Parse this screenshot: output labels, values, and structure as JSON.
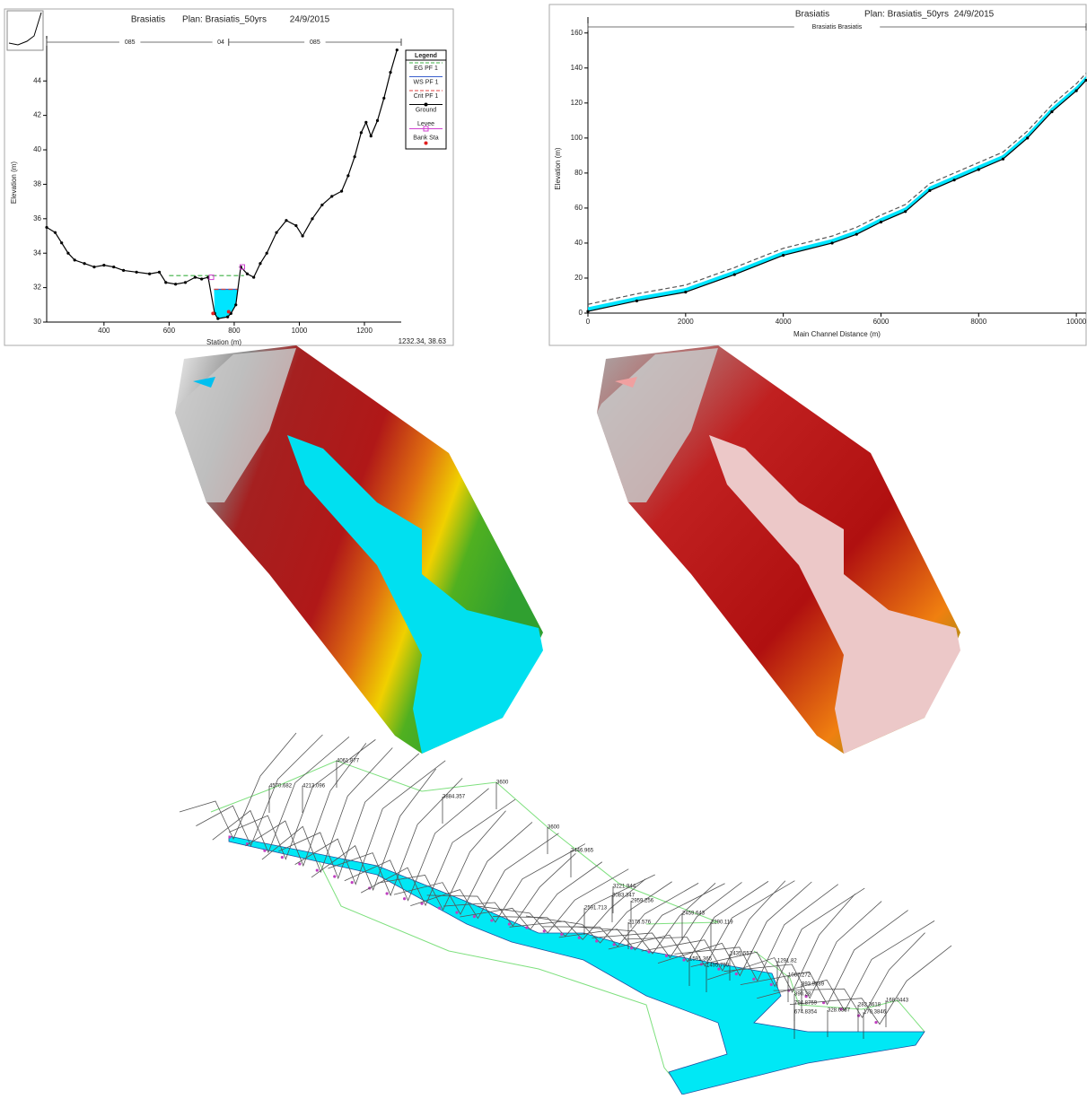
{
  "chart_data": [
    {
      "type": "line",
      "title": "Brasiatis",
      "plan": "Plan: Brasiatis_50yrs",
      "date": "24/9/2015",
      "x_label": "Station (m)",
      "y_label": "Elevation (m)",
      "xlim": [
        224,
        1313
      ],
      "xticks": [
        400,
        600,
        800,
        1000,
        1200
      ],
      "ylim": [
        30,
        46.2
      ],
      "yticks": [
        30,
        32,
        34,
        36,
        38,
        40,
        42,
        44
      ],
      "reach_labels": [
        "085",
        "04",
        "085"
      ],
      "legend": true,
      "legend_title": "Legend",
      "cursor_readout": "1232.34, 38.63",
      "series": [
        {
          "name": "EG PF 1",
          "color": "#3cb043",
          "dash": true,
          "line": true,
          "marker": null,
          "x": [
            600,
            830
          ],
          "values": [
            32.7,
            32.7
          ]
        },
        {
          "name": "WS PF 1",
          "color": "#3a5fcd",
          "dash": false,
          "line": true,
          "marker": null,
          "x": [
            738,
            812
          ],
          "values": [
            31.9,
            31.9
          ]
        },
        {
          "name": "Crit PF 1",
          "color": "#e04040",
          "dash": true,
          "line": true,
          "marker": null,
          "x": [
            738,
            812
          ],
          "values": [
            31.9,
            31.9
          ]
        },
        {
          "name": "Ground",
          "color": "#000000",
          "dash": false,
          "line": true,
          "marker": "circle",
          "x": [
            224,
            250,
            270,
            290,
            310,
            340,
            370,
            400,
            430,
            460,
            500,
            540,
            570,
            590,
            620,
            650,
            680,
            700,
            720,
            740,
            750,
            780,
            790,
            805,
            820,
            840,
            860,
            880,
            900,
            930,
            960,
            990,
            1010,
            1040,
            1070,
            1100,
            1130,
            1150,
            1170,
            1190,
            1205,
            1220,
            1240,
            1260,
            1280,
            1300
          ],
          "values": [
            35.5,
            35.2,
            34.6,
            34.0,
            33.6,
            33.4,
            33.2,
            33.3,
            33.2,
            33.0,
            32.9,
            32.8,
            32.9,
            32.3,
            32.2,
            32.3,
            32.6,
            32.5,
            32.6,
            30.5,
            30.2,
            30.3,
            30.5,
            31.0,
            33.2,
            32.8,
            32.6,
            33.4,
            34.0,
            35.2,
            35.9,
            35.6,
            35.0,
            36.0,
            36.8,
            37.3,
            37.6,
            38.5,
            39.6,
            41.0,
            41.6,
            40.8,
            41.7,
            43.0,
            44.5,
            45.8
          ]
        },
        {
          "name": "Levee",
          "color": "#d040d0",
          "dash": false,
          "line": false,
          "marker": "square",
          "x": [
            730,
            825
          ],
          "values": [
            32.6,
            33.2
          ]
        },
        {
          "name": "Bank Sta",
          "color": "#e02020",
          "dash": false,
          "line": false,
          "marker": "dot",
          "x": [
            735,
            783
          ],
          "values": [
            30.5,
            30.6
          ]
        }
      ]
    },
    {
      "type": "line",
      "title": "Brasiatis",
      "plan": "Plan: Brasiatis_50yrs",
      "date": "24/9/2015",
      "x_label": "Main Channel Distance (m)",
      "y_label": "Elevation (m)",
      "xlim": [
        0,
        10200
      ],
      "xticks": [
        0,
        2000,
        4000,
        6000,
        8000,
        10000
      ],
      "ylim": [
        0,
        165
      ],
      "yticks": [
        0,
        20,
        40,
        60,
        80,
        100,
        120,
        140,
        160
      ],
      "reach_labels": [
        "Brasiatis Brasiatis"
      ],
      "legend": false,
      "series": [
        {
          "name": "EG PF 1",
          "color": "#555555",
          "dash": true,
          "line": true,
          "marker": null,
          "fill": false,
          "x": [
            0,
            1000,
            2000,
            3000,
            4000,
            5000,
            5500,
            6000,
            6500,
            7000,
            7500,
            8000,
            8500,
            9000,
            9500,
            10000,
            10200
          ],
          "values": [
            5,
            11,
            16,
            26,
            37,
            44,
            49,
            56,
            62,
            74,
            80,
            86,
            92,
            104,
            119,
            131,
            137
          ]
        },
        {
          "name": "WS PF 1",
          "color": "#00e5ff",
          "dash": false,
          "line": true,
          "marker": null,
          "fill": true,
          "x": [
            0,
            1000,
            2000,
            3000,
            4000,
            5000,
            5500,
            6000,
            6500,
            7000,
            7500,
            8000,
            8500,
            9000,
            9500,
            10000,
            10200
          ],
          "values": [
            3,
            9,
            14,
            24,
            35,
            42,
            47,
            54,
            60,
            72,
            78,
            84,
            90,
            102,
            117,
            129,
            135
          ]
        },
        {
          "name": "Ground",
          "color": "#000000",
          "dash": false,
          "line": true,
          "marker": "circle",
          "fill": false,
          "x": [
            0,
            1000,
            2000,
            3000,
            4000,
            5000,
            5500,
            6000,
            6500,
            7000,
            7500,
            8000,
            8500,
            9000,
            9500,
            10000,
            10200
          ],
          "values": [
            1,
            7,
            12,
            22,
            33,
            40,
            45,
            52,
            58,
            70,
            76,
            82,
            88,
            100,
            115,
            127,
            133
          ]
        }
      ]
    }
  ],
  "river_3d": {
    "labels": [
      "4061.877",
      "4570.682",
      "4213.096",
      "3884.357",
      "3600",
      "3600",
      "3446.965",
      "3221.944",
      "3083.347",
      "2959.256",
      "2591.713",
      "2459.643",
      "2176.576",
      "2290.119",
      "1591.365",
      "1495.759",
      "1435.557",
      "1291.82",
      "1067.272",
      "993.9389",
      "890.28",
      "794.8759",
      "674.8354",
      "328.6367",
      "282.3618",
      "170.3846",
      "168.0443"
    ]
  }
}
